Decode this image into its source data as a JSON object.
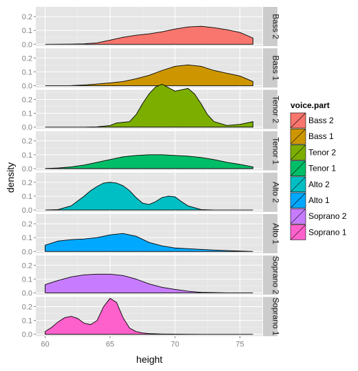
{
  "chart_data": {
    "type": "area",
    "subtype": "faceted density plot",
    "xlabel": "height",
    "ylabel": "density",
    "xlim": [
      60,
      76
    ],
    "ylim": [
      0,
      0.27
    ],
    "x_ticks": [
      60,
      65,
      70,
      75
    ],
    "y_ticks": [
      0.0,
      0.1,
      0.2
    ],
    "y_tick_labels": [
      "0.0",
      "0.1",
      "0.2"
    ],
    "grid": true,
    "legend": {
      "title": "voice.part",
      "placement": "right",
      "entries": [
        "Bass 2",
        "Bass 1",
        "Tenor 2",
        "Tenor 1",
        "Alto 2",
        "Alto 1",
        "Soprano 2",
        "Soprano 1"
      ]
    },
    "series": [
      {
        "name": "Bass 2",
        "color": "#F8766D",
        "x": [
          60,
          62,
          63,
          64,
          65,
          66,
          67,
          68,
          69,
          70,
          71,
          72,
          73,
          74,
          75,
          76
        ],
        "values": [
          0.0,
          0.001,
          0.003,
          0.01,
          0.03,
          0.05,
          0.065,
          0.075,
          0.09,
          0.11,
          0.125,
          0.13,
          0.12,
          0.105,
          0.085,
          0.045
        ]
      },
      {
        "name": "Bass 1",
        "color": "#CD9600",
        "x": [
          60,
          62,
          63,
          64,
          65,
          66,
          67,
          68,
          69,
          70,
          71,
          72,
          73,
          74,
          75,
          76
        ],
        "values": [
          0.0,
          0.001,
          0.005,
          0.012,
          0.02,
          0.03,
          0.05,
          0.075,
          0.11,
          0.14,
          0.15,
          0.14,
          0.11,
          0.09,
          0.07,
          0.03
        ]
      },
      {
        "name": "Tenor 2",
        "color": "#7CAE00",
        "x": [
          60,
          63,
          64,
          65,
          65.5,
          66,
          66.5,
          67,
          67.5,
          68,
          68.5,
          69,
          69.5,
          70,
          70.5,
          71,
          71.5,
          72,
          72.5,
          73,
          74,
          75,
          75.5,
          76
        ],
        "values": [
          0.0,
          0.0,
          0.002,
          0.012,
          0.03,
          0.035,
          0.04,
          0.09,
          0.17,
          0.24,
          0.29,
          0.31,
          0.285,
          0.26,
          0.27,
          0.28,
          0.24,
          0.17,
          0.09,
          0.04,
          0.012,
          0.02,
          0.03,
          0.04
        ]
      },
      {
        "name": "Tenor 1",
        "color": "#00BE67",
        "x": [
          60,
          61,
          62,
          63,
          64,
          65,
          66,
          67,
          68,
          69,
          70,
          71,
          72,
          73,
          74,
          75,
          76
        ],
        "values": [
          0.0,
          0.004,
          0.012,
          0.025,
          0.045,
          0.065,
          0.085,
          0.095,
          0.1,
          0.1,
          0.095,
          0.09,
          0.08,
          0.065,
          0.045,
          0.03,
          0.012
        ]
      },
      {
        "name": "Alto 2",
        "color": "#00BFC4",
        "x": [
          60,
          61,
          62,
          63,
          63.5,
          64,
          64.5,
          65,
          65.5,
          66,
          66.5,
          67,
          67.5,
          68,
          68.5,
          69,
          69.5,
          70,
          70.5,
          71,
          72,
          73,
          76
        ],
        "values": [
          0.0,
          0.003,
          0.03,
          0.1,
          0.14,
          0.17,
          0.195,
          0.2,
          0.195,
          0.175,
          0.14,
          0.09,
          0.05,
          0.04,
          0.06,
          0.09,
          0.1,
          0.095,
          0.06,
          0.03,
          0.003,
          0.0,
          0.0
        ]
      },
      {
        "name": "Alto 1",
        "color": "#00A9FF",
        "x": [
          60,
          61,
          62,
          63,
          64,
          65,
          66,
          67,
          68,
          69,
          70,
          71,
          72,
          73,
          74,
          75,
          76
        ],
        "values": [
          0.045,
          0.075,
          0.085,
          0.09,
          0.1,
          0.12,
          0.13,
          0.11,
          0.065,
          0.04,
          0.025,
          0.02,
          0.015,
          0.01,
          0.006,
          0.003,
          0.0
        ]
      },
      {
        "name": "Soprano 2",
        "color": "#C77CFF",
        "x": [
          60,
          61,
          62,
          63,
          64,
          65,
          66,
          67,
          68,
          69,
          70,
          71,
          72,
          73,
          74,
          75,
          76
        ],
        "values": [
          0.06,
          0.09,
          0.115,
          0.13,
          0.135,
          0.135,
          0.125,
          0.1,
          0.065,
          0.04,
          0.025,
          0.012,
          0.004,
          0.002,
          0.0,
          0.0,
          0.0
        ]
      },
      {
        "name": "Soprano 1",
        "color": "#FF61CC",
        "x": [
          60,
          60.5,
          61,
          61.5,
          62,
          62.5,
          63,
          63.5,
          64,
          64.5,
          65,
          65.5,
          66,
          66.5,
          67,
          67.5,
          68,
          69,
          70,
          72,
          74,
          76
        ],
        "values": [
          0.02,
          0.05,
          0.09,
          0.12,
          0.13,
          0.115,
          0.08,
          0.07,
          0.1,
          0.2,
          0.26,
          0.23,
          0.12,
          0.045,
          0.02,
          0.01,
          0.005,
          0.002,
          0.001,
          0.0,
          0.0,
          0.0
        ]
      }
    ]
  }
}
